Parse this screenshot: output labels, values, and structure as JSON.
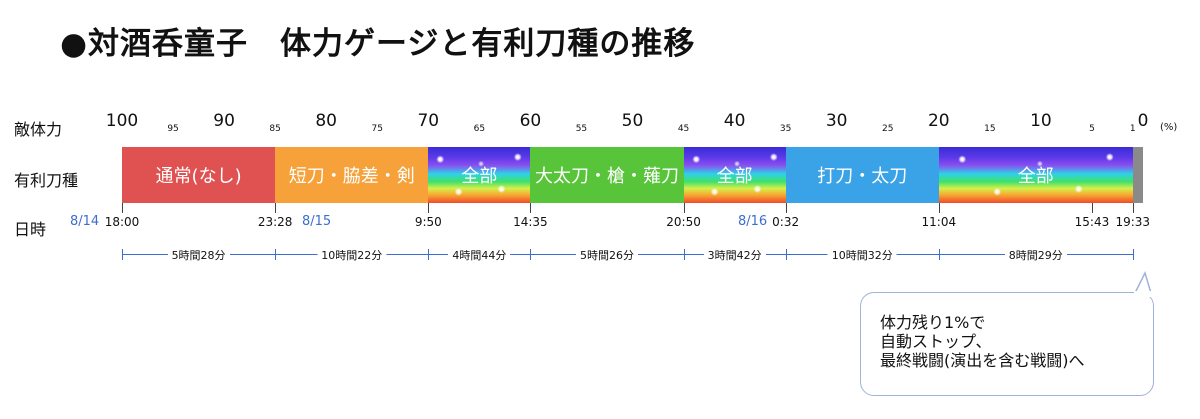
{
  "title": "●対酒呑童子　体力ゲージと有利刀種の推移",
  "row_labels": {
    "hp": "敵体力",
    "sword": "有利刀種",
    "time": "日時"
  },
  "hp_ticks_major": [
    "100",
    "90",
    "80",
    "70",
    "60",
    "50",
    "40",
    "30",
    "20",
    "10",
    "0"
  ],
  "hp_ticks_minor": [
    "95",
    "85",
    "75",
    "65",
    "55",
    "45",
    "35",
    "25",
    "15",
    "5",
    "1"
  ],
  "hp_unit": "(%)",
  "segments": [
    {
      "label": "通常(なし)",
      "color": "#e05252",
      "style": "solid",
      "from_pct": 100,
      "to_pct": 85
    },
    {
      "label": "短刀・脇差・剣",
      "color": "#f6a13a",
      "style": "solid",
      "from_pct": 85,
      "to_pct": 70
    },
    {
      "label": "全部",
      "color": "rainbow",
      "style": "rainbow",
      "from_pct": 70,
      "to_pct": 60
    },
    {
      "label": "大太刀・槍・薙刀",
      "color": "#57c43a",
      "style": "solid",
      "from_pct": 60,
      "to_pct": 45
    },
    {
      "label": "全部",
      "color": "rainbow",
      "style": "rainbow",
      "from_pct": 45,
      "to_pct": 35
    },
    {
      "label": "打刀・太刀",
      "color": "#3aa2e6",
      "style": "solid",
      "from_pct": 35,
      "to_pct": 20
    },
    {
      "label": "全部",
      "color": "rainbow",
      "style": "rainbow",
      "from_pct": 20,
      "to_pct": 1
    },
    {
      "label": "",
      "color": "#8a8a8a",
      "style": "solid",
      "from_pct": 1,
      "to_pct": 0
    }
  ],
  "dates": [
    "8/14",
    "8/15",
    "8/16"
  ],
  "times": [
    "18:00",
    "23:28",
    "9:50",
    "14:35",
    "20:50",
    "0:32",
    "11:04",
    "15:43",
    "19:33"
  ],
  "durations": [
    "5時間28分",
    "10時間22分",
    "4時間44分",
    "5時間26分",
    "3時間42分",
    "10時間32分",
    "8時間29分"
  ],
  "callout": {
    "lines": [
      "体力残り1%で",
      "自動ストップ、",
      "最終戦闘(演出を含む戦闘)へ"
    ]
  }
}
